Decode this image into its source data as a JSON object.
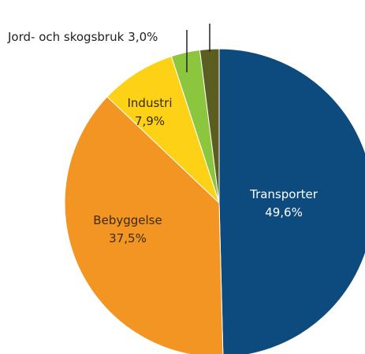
{
  "chart_data": {
    "type": "pie",
    "categories": [
      "Transporter",
      "Bebyggelse",
      "Industri",
      "Jord- och skogsbruk",
      null
    ],
    "values": [
      49.6,
      37.5,
      7.9,
      3.0,
      2.0
    ],
    "value_labels": [
      "49,6%",
      "37,5%",
      "7,9%",
      "3,0%",
      null
    ],
    "colors": [
      "#0d4a7e",
      "#f39522",
      "#fcd116",
      "#8cc63f",
      "#5b5e20"
    ]
  }
}
